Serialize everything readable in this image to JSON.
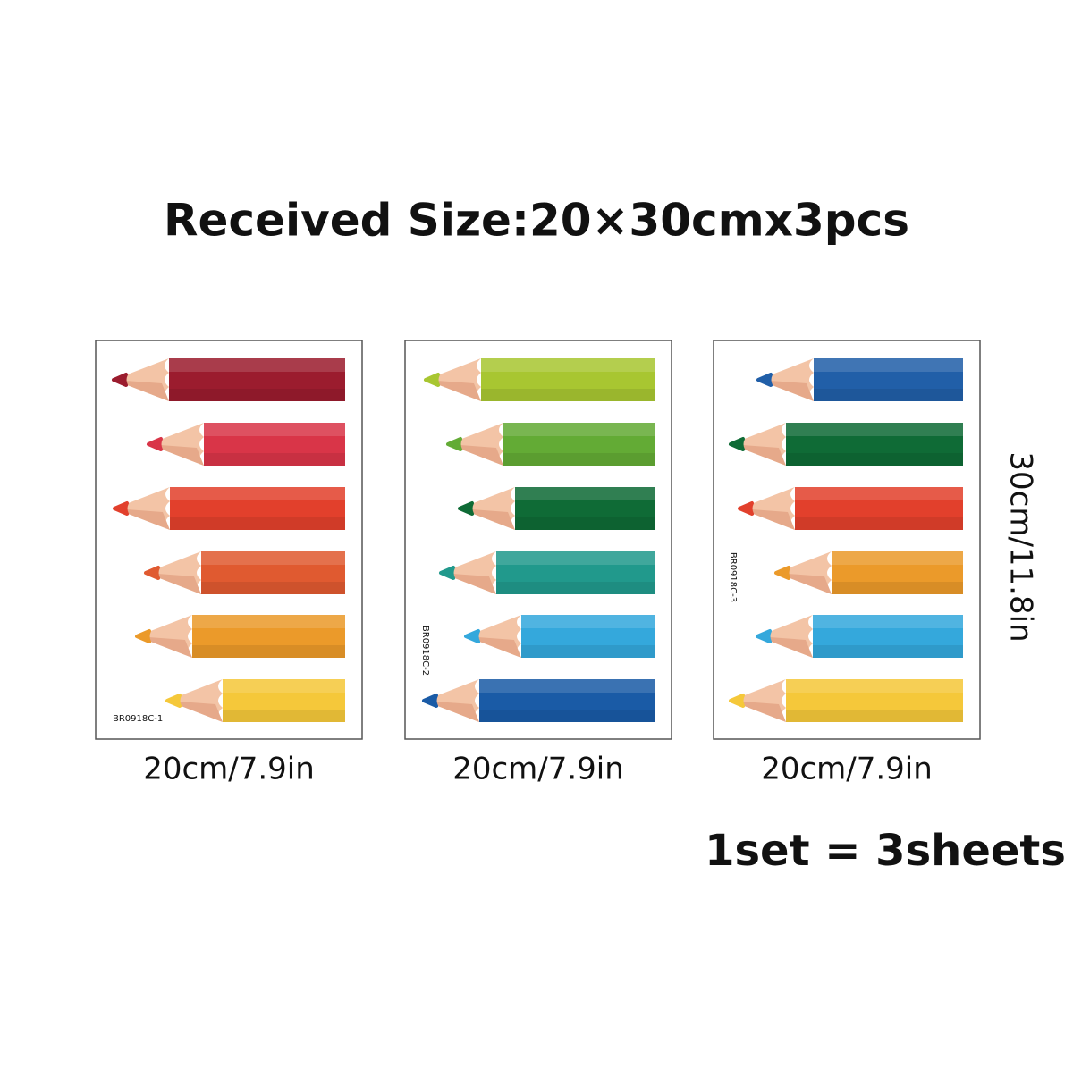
{
  "title": "Received Size:20×30cmx3pcs",
  "sheets": [
    {
      "code": "BR0918C-1",
      "width_label": "20cm/7.9in"
    },
    {
      "code": "BR0918C-2",
      "width_label": "20cm/7.9in"
    },
    {
      "code": "BR0918C-3",
      "width_label": "20cm/7.9in"
    }
  ],
  "height_label": "30cm/11.8in",
  "set_note": "1set = 3sheets"
}
